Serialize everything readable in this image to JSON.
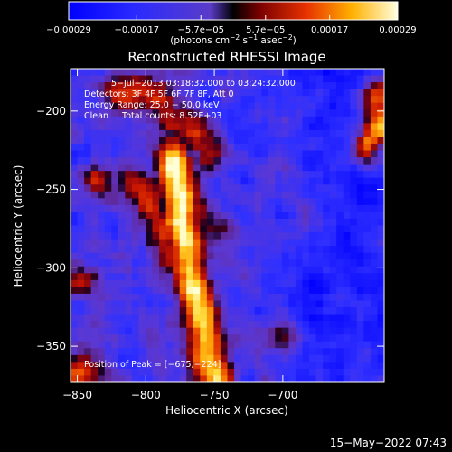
{
  "chart_data": {
    "type": "heatmap",
    "title": "Reconstructed RHESSI Image",
    "xlabel": "Heliocentric X (arcsec)",
    "ylabel": "Heliocentric Y (arcsec)",
    "xlim": [
      -855,
      -626
    ],
    "ylim": [
      -373,
      -173
    ],
    "xticks": [
      -850,
      -800,
      -750,
      -700
    ],
    "yticks": [
      -350,
      -300,
      -250,
      -200
    ],
    "xtick_labels": [
      "−850",
      "−800",
      "−750",
      "−700"
    ],
    "ytick_labels": [
      "−350",
      "−300",
      "−250",
      "−200"
    ],
    "colorbar": {
      "range": [
        -0.00029,
        0.00029
      ],
      "tick_values": [
        -0.00029,
        -0.00017,
        -5.7e-05,
        5.7e-05,
        0.00017,
        0.00029
      ],
      "tick_labels": [
        "−0.00029",
        "−0.00017",
        "−5.7e−05",
        "5.7e−05",
        "0.00017",
        "0.00029"
      ],
      "units_main": "(photons cm",
      "units_sup1": "−2",
      "units_mid": " s",
      "units_sup2": "−1",
      "units_end": " asec",
      "units_sup3": "−2",
      "units_close": ")"
    },
    "annotations": [
      "5−Jul−2013 03:18:32.000 to 03:24:32.000",
      "Detectors: 3F 4F 5F 6F 7F 8F, Att 0",
      "Energy Range: 25.0 − 50.0 keV",
      "Clean     Total counts: 8.52E+03"
    ],
    "peak_label": "Position of Peak = [−675,−224]",
    "peak": [
      -675,
      -224
    ],
    "ridges": [
      {
        "x": [
          -780,
          -777,
          -774,
          -770,
          -767,
          -763,
          -758,
          -755,
          -750
        ],
        "y": [
          -228,
          -248,
          -268,
          -288,
          -304,
          -320,
          -340,
          -356,
          -372
        ],
        "amp": 1.0
      },
      {
        "x": [
          -805,
          -797,
          -787,
          -778
        ],
        "y": [
          -248,
          -262,
          -278,
          -294
        ],
        "amp": 0.6
      },
      {
        "x": [
          -800,
          -785,
          -765,
          -755
        ],
        "y": [
          -185,
          -200,
          -215,
          -225
        ],
        "amp": 0.55
      },
      {
        "x": [
          -795,
          -780,
          -770,
          -758,
          -750
        ],
        "y": [
          -253,
          -256,
          -262,
          -268,
          -273
        ],
        "amp": 0.45
      }
    ],
    "blobs": [
      {
        "x": -629,
        "y": -210,
        "amp": 1.0,
        "r": 8
      },
      {
        "x": -632,
        "y": -190,
        "amp": 0.8,
        "r": 8
      },
      {
        "x": -640,
        "y": -223,
        "amp": 0.7,
        "r": 7
      },
      {
        "x": -850,
        "y": -310,
        "amp": 0.6,
        "r": 8
      },
      {
        "x": -845,
        "y": -365,
        "amp": 0.7,
        "r": 9
      },
      {
        "x": -820,
        "y": -190,
        "amp": 0.55,
        "r": 9
      },
      {
        "x": -835,
        "y": -245,
        "amp": 0.45,
        "r": 8
      },
      {
        "x": -700,
        "y": -340,
        "amp": 0.35,
        "r": 9
      },
      {
        "x": -685,
        "y": -265,
        "amp": 0.3,
        "r": 8
      }
    ],
    "timestamp": "15−May−2022 07:43"
  }
}
